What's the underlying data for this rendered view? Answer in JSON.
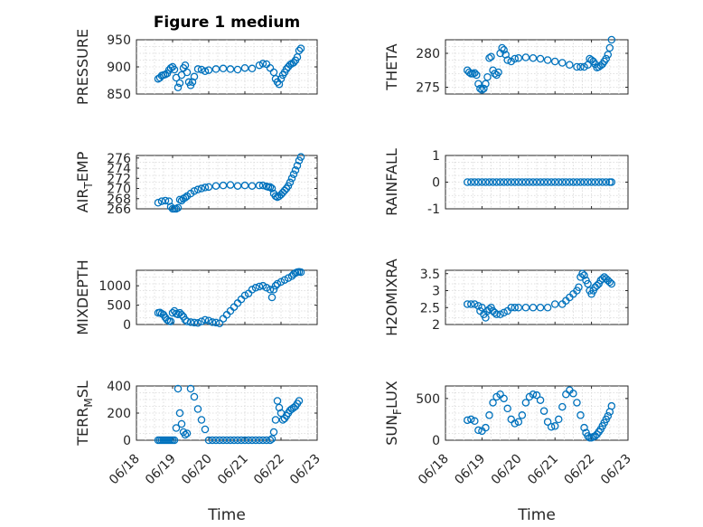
{
  "figure": {
    "title": "Figure 1 medium",
    "xlabel": "Time",
    "x_tick_labels": [
      "06/18",
      "06/19",
      "06/20",
      "06/21",
      "06/22",
      "06/23"
    ],
    "marker_color": "#0072bd"
  },
  "chart_data": [
    {
      "type": "scatter",
      "panel": "top-left",
      "title": "Figure 1 medium",
      "ylabel": "PRESSURE",
      "ylim": [
        850,
        950
      ],
      "yticks": [
        850,
        900,
        950
      ],
      "xlim": [
        0,
        5
      ],
      "x_ticks": [
        0,
        1,
        2,
        3,
        4,
        5
      ],
      "x_tick_labels": [
        "06/18",
        "06/19",
        "06/20",
        "06/21",
        "06/22",
        "06/23"
      ],
      "grid": true,
      "x": [
        0.6,
        0.65,
        0.7,
        0.75,
        0.8,
        0.85,
        0.9,
        0.95,
        1.0,
        1.05,
        1.1,
        1.15,
        1.2,
        1.25,
        1.3,
        1.35,
        1.4,
        1.45,
        1.5,
        1.55,
        1.6,
        1.7,
        1.8,
        1.9,
        2.0,
        2.2,
        2.4,
        2.6,
        2.8,
        3.0,
        3.2,
        3.4,
        3.5,
        3.6,
        3.7,
        3.8,
        3.85,
        3.9,
        3.95,
        4.0,
        4.05,
        4.1,
        4.15,
        4.2,
        4.25,
        4.3,
        4.35,
        4.4,
        4.45,
        4.5,
        4.55
      ],
      "y": [
        878,
        880,
        884,
        885,
        886,
        888,
        894,
        898,
        900,
        895,
        880,
        862,
        870,
        885,
        898,
        903,
        890,
        872,
        866,
        872,
        882,
        896,
        895,
        892,
        894,
        896,
        897,
        896,
        895,
        898,
        897,
        903,
        906,
        905,
        898,
        890,
        878,
        872,
        868,
        878,
        885,
        890,
        896,
        900,
        904,
        906,
        908,
        912,
        918,
        930,
        934
      ]
    },
    {
      "type": "scatter",
      "panel": "top-right",
      "ylabel": "THETA",
      "ylim": [
        274,
        282
      ],
      "yticks": [
        275,
        280
      ],
      "xlim": [
        0,
        5
      ],
      "x_ticks": [
        0,
        1,
        2,
        3,
        4,
        5
      ],
      "x_tick_labels": [
        "06/18",
        "06/19",
        "06/20",
        "06/21",
        "06/22",
        "06/23"
      ],
      "grid": true,
      "x": [
        0.6,
        0.65,
        0.7,
        0.75,
        0.8,
        0.85,
        0.9,
        0.95,
        1.0,
        1.05,
        1.1,
        1.15,
        1.2,
        1.25,
        1.3,
        1.35,
        1.4,
        1.45,
        1.5,
        1.55,
        1.6,
        1.65,
        1.7,
        1.8,
        1.9,
        2.0,
        2.2,
        2.4,
        2.6,
        2.8,
        3.0,
        3.2,
        3.4,
        3.6,
        3.7,
        3.8,
        3.9,
        3.95,
        4.0,
        4.05,
        4.1,
        4.15,
        4.2,
        4.25,
        4.3,
        4.35,
        4.4,
        4.45,
        4.5,
        4.55
      ],
      "y": [
        277.5,
        277.2,
        277.0,
        277.0,
        277.1,
        276.8,
        275.5,
        274.8,
        274.6,
        274.8,
        275.5,
        276.5,
        279.3,
        279.5,
        277.5,
        277.0,
        276.8,
        277.2,
        280.0,
        280.8,
        280.5,
        279.8,
        279.0,
        278.8,
        279.2,
        279.3,
        279.4,
        279.3,
        279.2,
        279.0,
        278.8,
        278.6,
        278.3,
        278.0,
        278.0,
        278.0,
        278.3,
        279.2,
        279.0,
        278.8,
        278.4,
        277.9,
        278.0,
        278.2,
        278.4,
        278.8,
        279.2,
        279.8,
        280.8,
        282.0
      ]
    },
    {
      "type": "scatter",
      "panel": "second-left",
      "ylabel": "AIR_TEMP",
      "ylim": [
        266,
        276.5
      ],
      "yticks": [
        266,
        268,
        270,
        272,
        274,
        276
      ],
      "xlim": [
        0,
        5
      ],
      "x_ticks": [
        0,
        1,
        2,
        3,
        4,
        5
      ],
      "x_tick_labels": [
        "06/18",
        "06/19",
        "06/20",
        "06/21",
        "06/22",
        "06/23"
      ],
      "grid": true,
      "x": [
        0.6,
        0.7,
        0.8,
        0.9,
        0.95,
        1.0,
        1.05,
        1.1,
        1.15,
        1.2,
        1.25,
        1.3,
        1.35,
        1.4,
        1.5,
        1.6,
        1.7,
        1.8,
        1.9,
        2.0,
        2.2,
        2.4,
        2.6,
        2.8,
        3.0,
        3.2,
        3.4,
        3.5,
        3.6,
        3.65,
        3.7,
        3.75,
        3.8,
        3.85,
        3.9,
        3.95,
        4.0,
        4.05,
        4.1,
        4.15,
        4.2,
        4.25,
        4.3,
        4.35,
        4.4,
        4.45,
        4.5,
        4.55
      ],
      "y": [
        267.2,
        267.5,
        267.6,
        267.5,
        266.4,
        266.0,
        266.0,
        266.0,
        266.2,
        267.8,
        267.6,
        268.0,
        268.2,
        268.5,
        269.0,
        269.5,
        269.8,
        270.0,
        270.2,
        270.3,
        270.5,
        270.6,
        270.7,
        270.5,
        270.6,
        270.5,
        270.6,
        270.6,
        270.4,
        270.3,
        270.3,
        270.0,
        269.0,
        268.5,
        268.3,
        268.5,
        268.8,
        269.2,
        269.6,
        270.0,
        270.5,
        271.2,
        272.0,
        272.8,
        273.6,
        274.5,
        275.5,
        276.2
      ]
    },
    {
      "type": "scatter",
      "panel": "second-right",
      "ylabel": "RAINFALL",
      "ylim": [
        -1,
        1
      ],
      "yticks": [
        -1,
        0,
        1
      ],
      "xlim": [
        0,
        5
      ],
      "x_ticks": [
        0,
        1,
        2,
        3,
        4,
        5
      ],
      "x_tick_labels": [
        "06/18",
        "06/19",
        "06/20",
        "06/21",
        "06/22",
        "06/23"
      ],
      "grid": true,
      "x": [
        0.6,
        0.7,
        0.8,
        0.9,
        1.0,
        1.1,
        1.2,
        1.3,
        1.4,
        1.5,
        1.6,
        1.7,
        1.8,
        1.9,
        2.0,
        2.1,
        2.2,
        2.3,
        2.4,
        2.5,
        2.6,
        2.7,
        2.8,
        2.9,
        3.0,
        3.1,
        3.2,
        3.3,
        3.4,
        3.5,
        3.6,
        3.7,
        3.8,
        3.9,
        4.0,
        4.1,
        4.2,
        4.3,
        4.4,
        4.5,
        4.55
      ],
      "y": [
        0,
        0,
        0,
        0,
        0,
        0,
        0,
        0,
        0,
        0,
        0,
        0,
        0,
        0,
        0,
        0,
        0,
        0,
        0,
        0,
        0,
        0,
        0,
        0,
        0,
        0,
        0,
        0,
        0,
        0,
        0,
        0,
        0,
        0,
        0,
        0,
        0,
        0,
        0,
        0,
        0
      ]
    },
    {
      "type": "scatter",
      "panel": "third-left",
      "ylabel": "MIXDEPTH",
      "ylim": [
        0,
        1400
      ],
      "yticks": [
        0,
        500,
        1000
      ],
      "xlim": [
        0,
        5
      ],
      "x_ticks": [
        0,
        1,
        2,
        3,
        4,
        5
      ],
      "x_tick_labels": [
        "06/18",
        "06/19",
        "06/20",
        "06/21",
        "06/22",
        "06/23"
      ],
      "grid": true,
      "x": [
        0.6,
        0.65,
        0.7,
        0.75,
        0.8,
        0.85,
        0.9,
        0.95,
        1.0,
        1.05,
        1.1,
        1.15,
        1.2,
        1.25,
        1.3,
        1.35,
        1.4,
        1.5,
        1.6,
        1.7,
        1.8,
        1.9,
        2.0,
        2.1,
        2.2,
        2.3,
        2.4,
        2.5,
        2.6,
        2.7,
        2.8,
        2.9,
        3.0,
        3.1,
        3.2,
        3.3,
        3.4,
        3.5,
        3.6,
        3.7,
        3.75,
        3.8,
        3.85,
        3.9,
        4.0,
        4.1,
        4.2,
        4.3,
        4.35,
        4.4,
        4.45,
        4.5,
        4.55
      ],
      "y": [
        300,
        310,
        280,
        250,
        180,
        120,
        90,
        80,
        300,
        350,
        280,
        260,
        300,
        250,
        200,
        120,
        80,
        60,
        50,
        40,
        80,
        120,
        100,
        60,
        50,
        30,
        150,
        250,
        350,
        450,
        550,
        650,
        750,
        800,
        900,
        950,
        980,
        1000,
        950,
        900,
        700,
        900,
        1000,
        1050,
        1100,
        1150,
        1200,
        1250,
        1300,
        1330,
        1350,
        1360,
        1350
      ]
    },
    {
      "type": "scatter",
      "panel": "third-right",
      "ylabel": "H2OMIXRA",
      "ylim": [
        2,
        3.6
      ],
      "yticks": [
        2,
        2.5,
        3,
        3.5
      ],
      "xlim": [
        0,
        5
      ],
      "x_ticks": [
        0,
        1,
        2,
        3,
        4,
        5
      ],
      "x_tick_labels": [
        "06/18",
        "06/19",
        "06/20",
        "06/21",
        "06/22",
        "06/23"
      ],
      "grid": true,
      "x": [
        0.6,
        0.7,
        0.8,
        0.9,
        0.95,
        1.0,
        1.05,
        1.1,
        1.15,
        1.2,
        1.25,
        1.3,
        1.35,
        1.4,
        1.5,
        1.6,
        1.7,
        1.8,
        1.9,
        2.0,
        2.2,
        2.4,
        2.6,
        2.8,
        3.0,
        3.2,
        3.3,
        3.4,
        3.5,
        3.6,
        3.65,
        3.7,
        3.75,
        3.8,
        3.85,
        3.9,
        3.95,
        4.0,
        4.05,
        4.1,
        4.15,
        4.2,
        4.25,
        4.3,
        4.35,
        4.4,
        4.45,
        4.5,
        4.55
      ],
      "y": [
        2.6,
        2.6,
        2.6,
        2.55,
        2.4,
        2.5,
        2.3,
        2.2,
        2.4,
        2.45,
        2.5,
        2.4,
        2.35,
        2.3,
        2.3,
        2.35,
        2.4,
        2.5,
        2.5,
        2.5,
        2.5,
        2.5,
        2.5,
        2.5,
        2.6,
        2.6,
        2.7,
        2.8,
        2.9,
        3.0,
        3.1,
        3.4,
        3.5,
        3.45,
        3.3,
        3.2,
        3.0,
        2.9,
        3.0,
        3.1,
        3.15,
        3.2,
        3.3,
        3.35,
        3.4,
        3.35,
        3.3,
        3.25,
        3.2
      ]
    },
    {
      "type": "scatter",
      "panel": "bottom-left",
      "ylabel": "TERR_MSL",
      "ylim": [
        0,
        400
      ],
      "yticks": [
        0,
        200,
        400
      ],
      "xlim": [
        0,
        5
      ],
      "x_ticks": [
        0,
        1,
        2,
        3,
        4,
        5
      ],
      "x_tick_labels": [
        "06/18",
        "06/19",
        "06/20",
        "06/21",
        "06/22",
        "06/23"
      ],
      "grid": true,
      "x": [
        0.6,
        0.65,
        0.7,
        0.75,
        0.8,
        0.85,
        0.9,
        0.95,
        1.0,
        1.05,
        1.1,
        1.15,
        1.2,
        1.25,
        1.3,
        1.35,
        1.4,
        1.5,
        1.6,
        1.7,
        1.8,
        1.9,
        2.0,
        2.1,
        2.2,
        2.3,
        2.4,
        2.5,
        2.6,
        2.7,
        2.8,
        2.9,
        3.0,
        3.1,
        3.2,
        3.3,
        3.4,
        3.5,
        3.6,
        3.7,
        3.75,
        3.8,
        3.85,
        3.9,
        3.95,
        4.0,
        4.05,
        4.1,
        4.15,
        4.2,
        4.25,
        4.3,
        4.35,
        4.4,
        4.45,
        4.5
      ],
      "y": [
        0,
        0,
        0,
        0,
        0,
        0,
        0,
        0,
        0,
        0,
        90,
        380,
        200,
        120,
        60,
        40,
        50,
        380,
        320,
        230,
        150,
        80,
        0,
        0,
        0,
        0,
        0,
        0,
        0,
        0,
        0,
        0,
        0,
        0,
        0,
        0,
        0,
        0,
        0,
        0,
        10,
        60,
        150,
        290,
        240,
        200,
        150,
        160,
        180,
        200,
        220,
        230,
        240,
        250,
        270,
        290
      ]
    },
    {
      "type": "scatter",
      "panel": "bottom-right",
      "ylabel": "SUN_FLUX",
      "ylim": [
        0,
        650
      ],
      "yticks": [
        0,
        500
      ],
      "xlim": [
        0,
        5
      ],
      "x_ticks": [
        0,
        1,
        2,
        3,
        4,
        5
      ],
      "x_tick_labels": [
        "06/18",
        "06/19",
        "06/20",
        "06/21",
        "06/22",
        "06/23"
      ],
      "grid": true,
      "x": [
        0.6,
        0.7,
        0.8,
        0.9,
        1.0,
        1.1,
        1.2,
        1.3,
        1.4,
        1.5,
        1.6,
        1.7,
        1.8,
        1.9,
        2.0,
        2.1,
        2.2,
        2.3,
        2.4,
        2.5,
        2.6,
        2.7,
        2.8,
        2.9,
        3.0,
        3.1,
        3.2,
        3.3,
        3.4,
        3.5,
        3.6,
        3.7,
        3.8,
        3.85,
        3.9,
        3.95,
        4.0,
        4.05,
        4.1,
        4.15,
        4.2,
        4.25,
        4.3,
        4.35,
        4.4,
        4.45,
        4.5,
        4.55
      ],
      "y": [
        240,
        250,
        230,
        120,
        110,
        150,
        300,
        450,
        520,
        550,
        500,
        380,
        250,
        200,
        220,
        300,
        450,
        520,
        550,
        540,
        480,
        350,
        220,
        160,
        170,
        250,
        400,
        550,
        600,
        560,
        450,
        300,
        150,
        90,
        50,
        30,
        30,
        40,
        50,
        70,
        100,
        130,
        170,
        210,
        250,
        290,
        340,
        410
      ]
    }
  ]
}
